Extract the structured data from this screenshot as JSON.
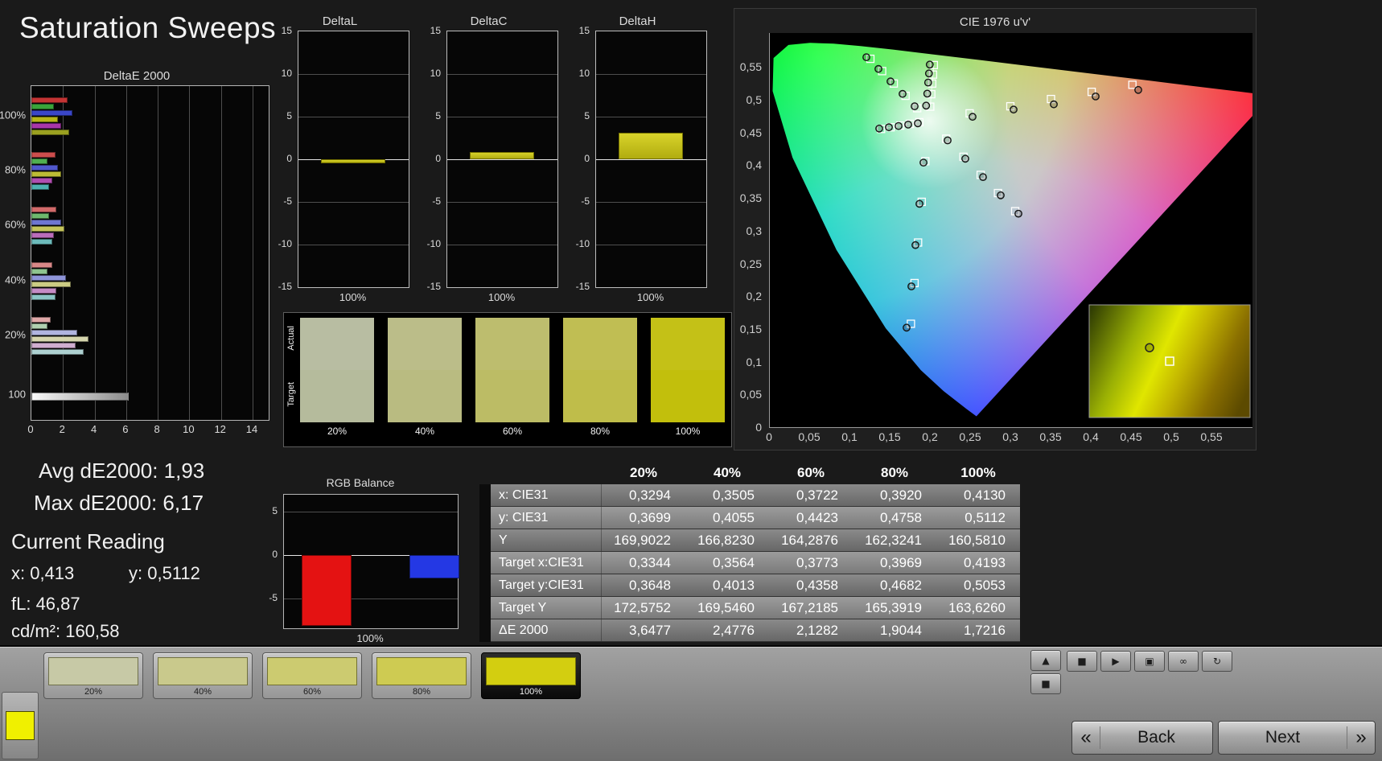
{
  "title": "Saturation Sweeps",
  "readouts": {
    "avg": "Avg dE2000: 1,93",
    "max": "Max dE2000: 6,17",
    "current_heading": "Current Reading",
    "x": "x: 0,413",
    "y": "y: 0,5112",
    "fl": "fL: 46,87",
    "cd": "cd/m²: 160,58"
  },
  "swatch_panel": {
    "row_labels": [
      "Actual",
      "Target"
    ],
    "items": [
      {
        "label": "20%",
        "actual": "#b8bda2",
        "target": "#b5bb9c"
      },
      {
        "label": "40%",
        "actual": "#bbbd89",
        "target": "#b9bb81"
      },
      {
        "label": "60%",
        "actual": "#bdbd6e",
        "target": "#bcbc65"
      },
      {
        "label": "80%",
        "actual": "#c0be53",
        "target": "#bfbd4a"
      },
      {
        "label": "100%",
        "actual": "#c4c117",
        "target": "#c2bf0c"
      }
    ]
  },
  "toolbar": {
    "corner_color": "#f0f000",
    "patches": [
      {
        "label": "20%",
        "color": "#c7c9a6",
        "selected": false
      },
      {
        "label": "40%",
        "color": "#c9c98c",
        "selected": false
      },
      {
        "label": "60%",
        "color": "#cccb70",
        "selected": false
      },
      {
        "label": "80%",
        "color": "#cecb52",
        "selected": false
      },
      {
        "label": "100%",
        "color": "#d3ce10",
        "selected": true
      }
    ],
    "stack_buttons": [
      {
        "name": "eject-button",
        "glyph": "▲"
      },
      {
        "name": "display-mode-button",
        "glyph": "■"
      }
    ],
    "transport_buttons": [
      {
        "name": "stop-button",
        "glyph": "■"
      },
      {
        "name": "play-button",
        "glyph": "▶"
      },
      {
        "name": "capture-button",
        "glyph": "▣"
      },
      {
        "name": "continuous-button",
        "glyph": "∞"
      },
      {
        "name": "refresh-button",
        "glyph": "↻"
      }
    ],
    "back_glyph": "«",
    "back_label": "Back",
    "next_label": "Next",
    "next_glyph": "»"
  },
  "chart_data": [
    {
      "id": "deltae2000",
      "type": "bar",
      "title": "DeltaE 2000",
      "orientation": "horizontal",
      "xlim": [
        0,
        14
      ],
      "x_ticks": [
        0,
        2,
        4,
        6,
        8,
        10,
        12,
        14
      ],
      "groups": [
        {
          "label": "100%",
          "bars": [
            {
              "color": "#c43434",
              "value": 2.3
            },
            {
              "color": "#3aa43a",
              "value": 1.4
            },
            {
              "color": "#3a46c8",
              "value": 2.6
            },
            {
              "color": "#b6b618",
              "value": 1.7
            },
            {
              "color": "#a836a8",
              "value": 1.9
            },
            {
              "color": "#9aa020",
              "value": 2.4
            }
          ]
        },
        {
          "label": "80%",
          "bars": [
            {
              "color": "#cc4d4d",
              "value": 1.5
            },
            {
              "color": "#50ae50",
              "value": 1.0
            },
            {
              "color": "#5058cc",
              "value": 1.7
            },
            {
              "color": "#bcbc35",
              "value": 1.9
            },
            {
              "color": "#b04eb0",
              "value": 1.3
            },
            {
              "color": "#4eb0b0",
              "value": 1.1
            }
          ]
        },
        {
          "label": "60%",
          "bars": [
            {
              "color": "#d16a6a",
              "value": 1.6
            },
            {
              "color": "#6eb96e",
              "value": 1.1
            },
            {
              "color": "#6e76d1",
              "value": 1.9
            },
            {
              "color": "#c4c45c",
              "value": 2.1
            },
            {
              "color": "#ba6cba",
              "value": 1.4
            },
            {
              "color": "#6cbaba",
              "value": 1.3
            }
          ]
        },
        {
          "label": "40%",
          "bars": [
            {
              "color": "#d88888",
              "value": 1.3
            },
            {
              "color": "#8ec48e",
              "value": 1.0
            },
            {
              "color": "#8e94d8",
              "value": 2.2
            },
            {
              "color": "#cccc84",
              "value": 2.5
            },
            {
              "color": "#c58cc5",
              "value": 1.6
            },
            {
              "color": "#8cc5c5",
              "value": 1.5
            }
          ]
        },
        {
          "label": "20%",
          "bars": [
            {
              "color": "#dfa8a8",
              "value": 1.2
            },
            {
              "color": "#b0d0b0",
              "value": 1.0
            },
            {
              "color": "#b0b4df",
              "value": 2.9
            },
            {
              "color": "#d5d5ad",
              "value": 3.6
            },
            {
              "color": "#d0add0",
              "value": 2.8
            },
            {
              "color": "#add0d0",
              "value": 3.3
            }
          ]
        },
        {
          "label": "100",
          "bars": [
            {
              "color": "gradient",
              "value": 6.17
            }
          ]
        }
      ]
    },
    {
      "id": "deltaL",
      "type": "bar",
      "title": "DeltaL",
      "x_label": "100%",
      "ylim": [
        -15,
        15
      ],
      "y_ticks": [
        15,
        10,
        5,
        0,
        -5,
        -10,
        -15
      ],
      "categories": [
        "100%"
      ],
      "values": [
        -0.5
      ],
      "bar_color": "#c9c414"
    },
    {
      "id": "deltaC",
      "type": "bar",
      "title": "DeltaC",
      "x_label": "100%",
      "ylim": [
        -15,
        15
      ],
      "y_ticks": [
        15,
        10,
        5,
        0,
        -5,
        -10,
        -15
      ],
      "categories": [
        "100%"
      ],
      "values": [
        0.9
      ],
      "bar_color": "#c9c414"
    },
    {
      "id": "deltaH",
      "type": "bar",
      "title": "DeltaH",
      "x_label": "100%",
      "ylim": [
        -15,
        15
      ],
      "y_ticks": [
        15,
        10,
        5,
        0,
        -5,
        -10,
        -15
      ],
      "categories": [
        "100%"
      ],
      "values": [
        3.1
      ],
      "bar_color": "#c9c414"
    },
    {
      "id": "rgb_balance",
      "type": "bar",
      "title": "RGB Balance",
      "x_label": "100%",
      "ylim": [
        -8.5,
        7
      ],
      "y_ticks": [
        5,
        0,
        -5
      ],
      "categories": [
        "100%"
      ],
      "series": [
        {
          "name": "Red",
          "color": "#e41212",
          "value": -8.2
        },
        {
          "name": "Green",
          "color": "#14b814",
          "value": 0
        },
        {
          "name": "Blue",
          "color": "#2438e4",
          "value": -2.7
        }
      ]
    },
    {
      "id": "cie",
      "type": "scatter",
      "title": "CIE 1976 u'v'",
      "xlim": [
        0,
        0.6
      ],
      "ylim": [
        0,
        0.602
      ],
      "ticks": [
        {
          "v": 0,
          "label": "0"
        },
        {
          "v": 0.05,
          "label": "0,05"
        },
        {
          "v": 0.1,
          "label": "0,1"
        },
        {
          "v": 0.15,
          "label": "0,15"
        },
        {
          "v": 0.2,
          "label": "0,2"
        },
        {
          "v": 0.25,
          "label": "0,25"
        },
        {
          "v": 0.3,
          "label": "0,3"
        },
        {
          "v": 0.35,
          "label": "0,35"
        },
        {
          "v": 0.4,
          "label": "0,4"
        },
        {
          "v": 0.45,
          "label": "0,45"
        },
        {
          "v": 0.5,
          "label": "0,5"
        },
        {
          "v": 0.55,
          "label": "0,55"
        }
      ],
      "locus": [
        [
          0.2568,
          0.0166
        ],
        [
          0.2443,
          0.028
        ],
        [
          0.2161,
          0.055
        ],
        [
          0.1877,
          0.0871
        ],
        [
          0.1441,
          0.151
        ],
        [
          0.0828,
          0.2708
        ],
        [
          0.0282,
          0.4117
        ],
        [
          0.0035,
          0.5131
        ],
        [
          0.0046,
          0.5638
        ],
        [
          0.0231,
          0.5837
        ],
        [
          0.05,
          0.5868
        ],
        [
          0.0792,
          0.5856
        ],
        [
          0.1127,
          0.5821
        ],
        [
          0.1531,
          0.5766
        ],
        [
          0.2026,
          0.5693
        ],
        [
          0.2623,
          0.5604
        ],
        [
          0.3315,
          0.5501
        ],
        [
          0.4035,
          0.5393
        ],
        [
          0.4692,
          0.5296
        ],
        [
          0.5202,
          0.5219
        ],
        [
          0.583,
          0.5125
        ],
        [
          0.6234,
          0.5065
        ]
      ],
      "sweeps": [
        {
          "name": "yellow",
          "connect": true,
          "targets": [
            [
              0.1994,
              0.4894
            ],
            [
              0.2007,
              0.5085
            ],
            [
              0.2019,
              0.5247
            ],
            [
              0.2029,
              0.5385
            ],
            [
              0.2039,
              0.5529
            ]
          ],
          "measured": [
            [
              0.1943,
              0.491
            ],
            [
              0.1957,
              0.5093
            ],
            [
              0.1968,
              0.5263
            ],
            [
              0.1978,
              0.5402
            ],
            [
              0.1988,
              0.5537
            ]
          ]
        },
        {
          "name": "red",
          "connect": false,
          "targets": [
            [
              0.2484,
              0.4792
            ],
            [
              0.299,
              0.4901
            ],
            [
              0.3495,
              0.5011
            ],
            [
              0.4001,
              0.512
            ],
            [
              0.4507,
              0.5229
            ]
          ],
          "measured": [
            [
              0.252,
              0.474
            ],
            [
              0.303,
              0.485
            ],
            [
              0.353,
              0.493
            ],
            [
              0.405,
              0.505
            ],
            [
              0.458,
              0.515
            ]
          ]
        },
        {
          "name": "green",
          "connect": false,
          "targets": [
            [
              0.1832,
              0.4871
            ],
            [
              0.1687,
              0.506
            ],
            [
              0.1541,
              0.5248
            ],
            [
              0.1396,
              0.5437
            ],
            [
              0.125,
              0.5625
            ]
          ],
          "measured": [
            [
              0.18,
              0.49
            ],
            [
              0.165,
              0.509
            ],
            [
              0.15,
              0.528
            ],
            [
              0.135,
              0.547
            ],
            [
              0.12,
              0.565
            ]
          ]
        },
        {
          "name": "blue",
          "connect": false,
          "targets": [
            [
              0.1933,
              0.4062
            ],
            [
              0.1888,
              0.3441
            ],
            [
              0.1843,
              0.282
            ],
            [
              0.1799,
              0.22
            ],
            [
              0.1754,
              0.1579
            ]
          ],
          "measured": [
            [
              0.191,
              0.404
            ],
            [
              0.186,
              0.341
            ],
            [
              0.181,
              0.278
            ],
            [
              0.176,
              0.215
            ],
            [
              0.17,
              0.152
            ]
          ]
        },
        {
          "name": "cyan",
          "connect": true,
          "targets": [
            [
              0.1859,
              0.4657
            ],
            [
              0.174,
              0.4631
            ],
            [
              0.1621,
              0.4606
            ],
            [
              0.1502,
              0.458
            ],
            [
              0.1383,
              0.4554
            ]
          ],
          "measured": [
            [
              0.184,
              0.464
            ],
            [
              0.172,
              0.462
            ],
            [
              0.16,
              0.46
            ],
            [
              0.148,
              0.458
            ],
            [
              0.136,
              0.456
            ]
          ]
        },
        {
          "name": "magenta",
          "connect": false,
          "targets": [
            [
              0.2192,
              0.4406
            ],
            [
              0.2407,
              0.4129
            ],
            [
              0.2621,
              0.3852
            ],
            [
              0.2836,
              0.3575
            ],
            [
              0.305,
              0.3298
            ]
          ],
          "measured": [
            [
              0.221,
              0.438
            ],
            [
              0.243,
              0.41
            ],
            [
              0.265,
              0.382
            ],
            [
              0.287,
              0.354
            ],
            [
              0.309,
              0.326
            ]
          ]
        }
      ],
      "inset": {
        "circle": [
          0.375,
          0.38
        ],
        "square": [
          0.5,
          0.5
        ]
      }
    },
    {
      "id": "measurements",
      "type": "table",
      "columns": [
        "20%",
        "40%",
        "60%",
        "80%",
        "100%"
      ],
      "rows": [
        {
          "label": "x: CIE31",
          "values": [
            "0,3294",
            "0,3505",
            "0,3722",
            "0,3920",
            "0,4130"
          ]
        },
        {
          "label": "y: CIE31",
          "values": [
            "0,3699",
            "0,4055",
            "0,4423",
            "0,4758",
            "0,5112"
          ]
        },
        {
          "label": "Y",
          "values": [
            "169,9022",
            "166,8230",
            "164,2876",
            "162,3241",
            "160,5810"
          ]
        },
        {
          "label": "Target x:CIE31",
          "values": [
            "0,3344",
            "0,3564",
            "0,3773",
            "0,3969",
            "0,4193"
          ]
        },
        {
          "label": "Target y:CIE31",
          "values": [
            "0,3648",
            "0,4013",
            "0,4358",
            "0,4682",
            "0,5053"
          ]
        },
        {
          "label": "Target Y",
          "values": [
            "172,5752",
            "169,5460",
            "167,2185",
            "165,3919",
            "163,6260"
          ]
        },
        {
          "label": "ΔE 2000",
          "values": [
            "3,6477",
            "2,4776",
            "2,1282",
            "1,9044",
            "1,7216"
          ]
        }
      ]
    }
  ]
}
